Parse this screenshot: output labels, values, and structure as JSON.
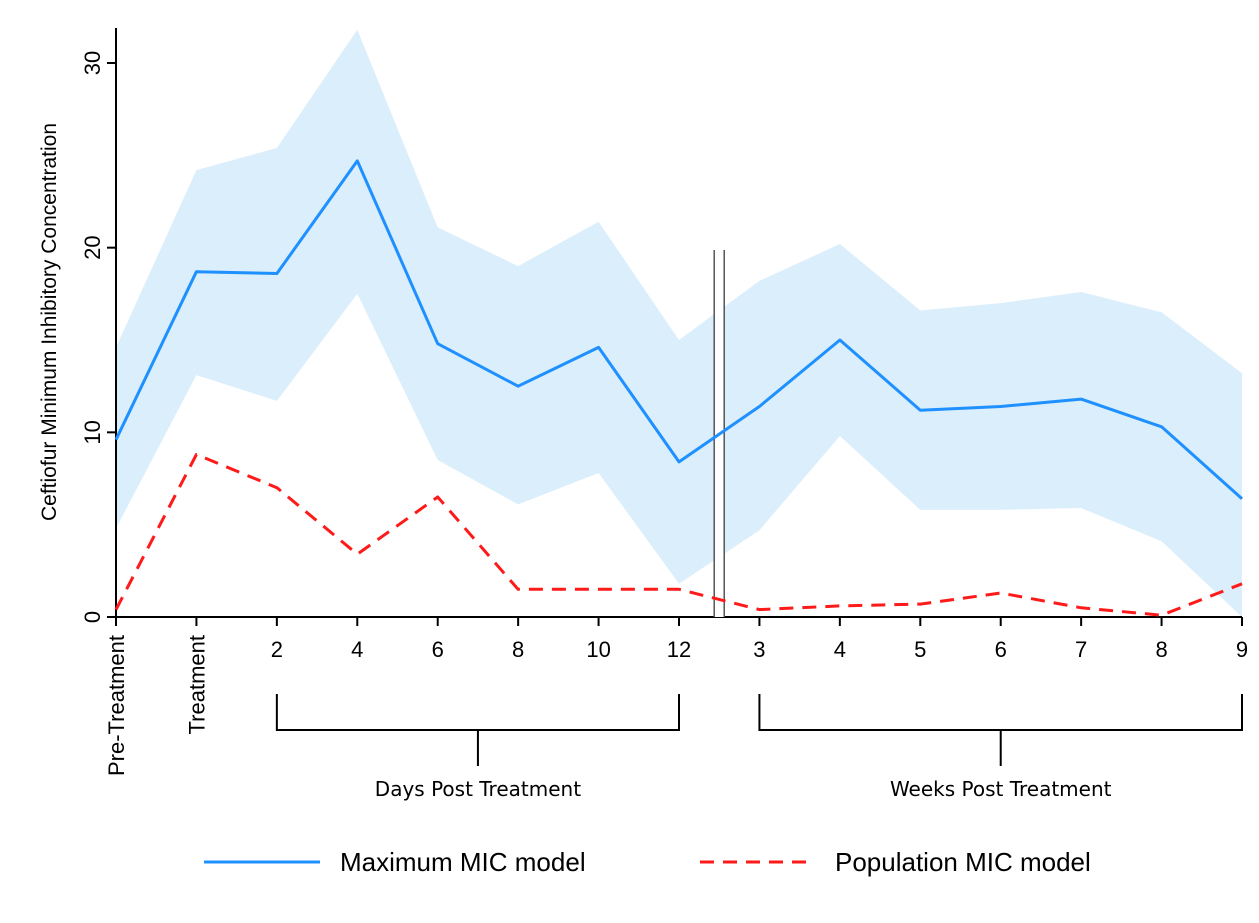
{
  "chart_data": {
    "type": "line",
    "ylabel": "Ceftiofur Minimum Inhibitory Concentration",
    "xlabel": "",
    "ylim": [
      0,
      32
    ],
    "yticks": [
      0,
      10,
      20,
      30
    ],
    "categories": [
      "Pre-Treatment",
      "Treatment",
      "2",
      "4",
      "6",
      "8",
      "10",
      "12",
      "3",
      "4",
      "5",
      "6",
      "7",
      "8",
      "9"
    ],
    "break_between": [
      "12",
      "3"
    ],
    "groups": [
      {
        "label": "Days Post Treatment",
        "from": "2",
        "to": "12"
      },
      {
        "label": "Weeks Post Treatment",
        "from": "3",
        "to": "9"
      }
    ],
    "series": [
      {
        "name": "Maximum MIC model",
        "color": "#1e90ff",
        "style": "solid",
        "values": [
          9.6,
          18.7,
          18.6,
          24.7,
          14.8,
          12.5,
          14.6,
          8.4,
          11.4,
          15.0,
          11.2,
          11.4,
          11.8,
          10.3,
          6.4
        ],
        "ci_upper": [
          14.6,
          24.2,
          25.4,
          31.8,
          21.1,
          19.0,
          21.4,
          15.0,
          18.2,
          20.2,
          16.6,
          17.0,
          17.6,
          16.5,
          13.2
        ],
        "ci_lower": [
          4.8,
          13.1,
          11.7,
          17.5,
          8.5,
          6.1,
          7.8,
          1.8,
          4.7,
          9.8,
          5.8,
          5.8,
          5.9,
          4.1,
          0.0
        ]
      },
      {
        "name": "Population MIC model",
        "color": "#ff1a1a",
        "style": "dashed",
        "values": [
          0.4,
          8.8,
          7.0,
          3.4,
          6.5,
          1.5,
          1.5,
          1.5,
          0.4,
          0.6,
          0.7,
          1.3,
          0.5,
          0.1,
          1.8
        ]
      }
    ],
    "band_color": "#dbeefc",
    "grid": false,
    "legend_position": "bottom"
  }
}
